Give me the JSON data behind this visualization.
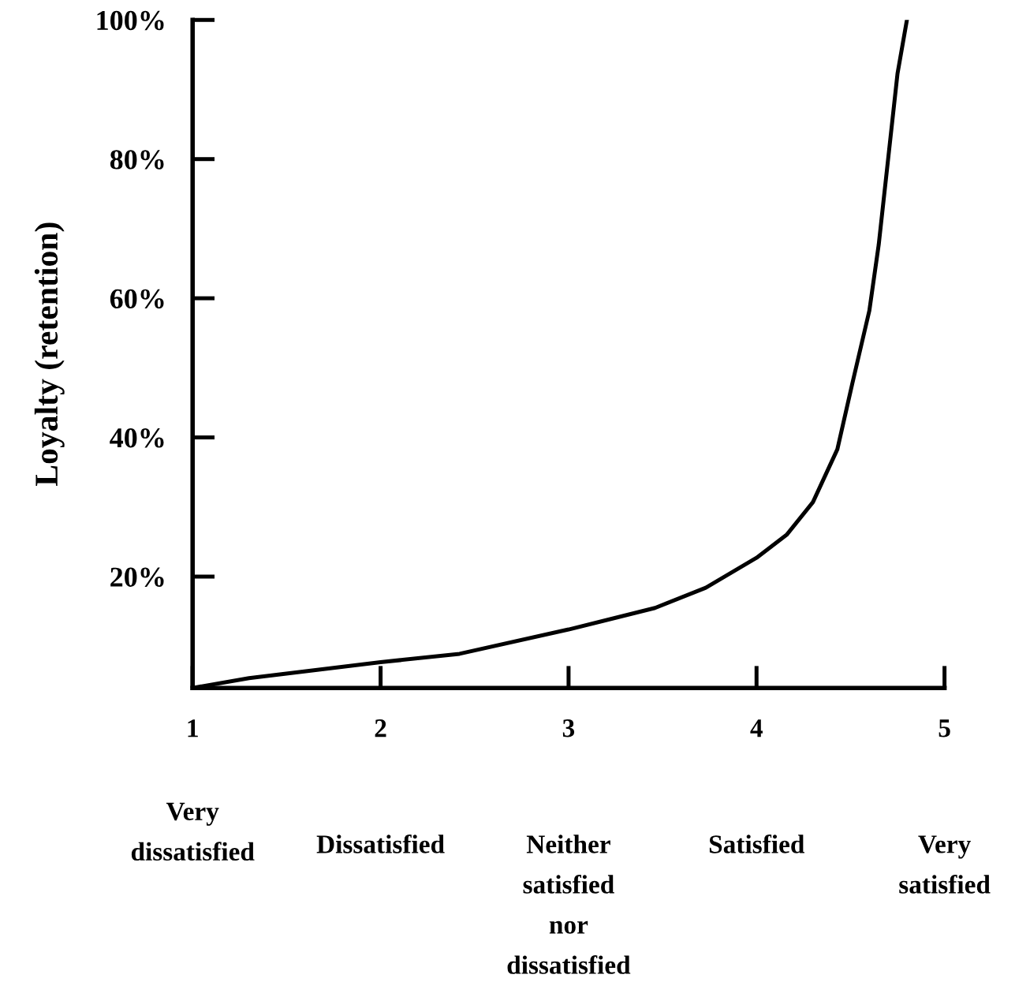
{
  "chart_data": {
    "type": "line",
    "ylabel": "Loyalty (retention)",
    "x": [
      1,
      1.3,
      2,
      2.42,
      3,
      3.46,
      3.73,
      4,
      4.16,
      4.3,
      4.43,
      4.51,
      4.6,
      4.65,
      4.7,
      4.75,
      4.8
    ],
    "series": [
      {
        "color": "#000000",
        "values": [
          4,
          5.4,
          7.7,
          8.9,
          12.4,
          15.5,
          18.4,
          22.7,
          26,
          30.7,
          38.3,
          47.8,
          58.2,
          67.7,
          80,
          92.3,
          100
        ]
      }
    ],
    "xlim": [
      1,
      5
    ],
    "xticks": [
      1,
      2,
      3,
      4,
      5
    ],
    "annotations": [
      "Very\ndissatisfied",
      "Dissatisfied",
      "Neither\nsatisfied\nnor\ndissatisfied",
      "Satisfied",
      "Very\nsatisfied"
    ],
    "ylim": [
      4,
      100
    ],
    "yticks": [
      {
        "value": 20,
        "label": "20%"
      },
      {
        "value": 40,
        "label": "40%"
      },
      {
        "value": 60,
        "label": "60%"
      },
      {
        "value": 80,
        "label": "80%"
      },
      {
        "value": 100,
        "label": "100%"
      }
    ],
    "grid": false,
    "marker": "none",
    "line_style": "solid"
  }
}
